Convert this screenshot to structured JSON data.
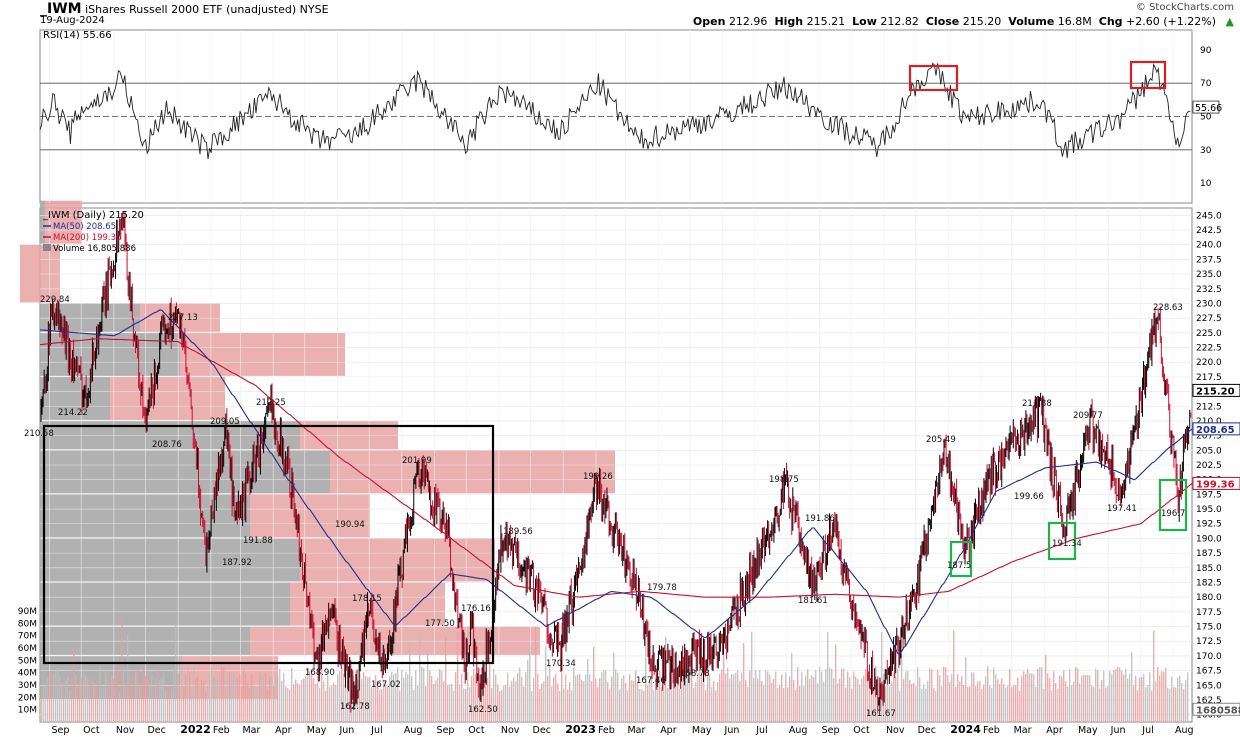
{
  "header": {
    "symbol": "_IWM",
    "description": "iShares Russell 2000 ETF (unadjusted)",
    "exchange": "NYSE",
    "date": "19-Aug-2024",
    "watermark": "© StockCharts.com",
    "open_label": "Open",
    "open_value": "212.96",
    "high_label": "High",
    "high_value": "215.21",
    "low_label": "Low",
    "low_value": "212.82",
    "close_label": "Close",
    "close_value": "215.20",
    "volume_label": "Volume",
    "volume_value": "16.8M",
    "chg_label": "Chg",
    "chg_value": "+2.60 (+1.22%)",
    "chg_arrow": "▲"
  },
  "rsi": {
    "legend": "RSI(14) 55.66",
    "ticks": [
      "90",
      "70",
      "50",
      "30",
      "10"
    ],
    "current_label": "55.66"
  },
  "price": {
    "legend_main": "_IWM (Daily) 215.20",
    "legend_ma50": "MA(50) 208.65",
    "legend_ma200": "MA(200) 199.36",
    "legend_volume": "Volume 16,805,886",
    "ticks": [
      "245.0",
      "242.5",
      "240.0",
      "237.5",
      "235.0",
      "232.5",
      "230.0",
      "227.5",
      "225.0",
      "222.5",
      "220.0",
      "217.5",
      "215.0",
      "212.5",
      "210.0",
      "207.5",
      "205.0",
      "202.5",
      "200.0",
      "197.5",
      "195.0",
      "192.5",
      "190.0",
      "187.5",
      "185.0",
      "182.5",
      "180.0",
      "177.5",
      "175.0",
      "172.5",
      "170.0",
      "167.5",
      "165.0",
      "162.5",
      "160.0"
    ],
    "volume_ticks": [
      "90M",
      "80M",
      "70M",
      "60M",
      "50M",
      "40M",
      "30M",
      "20M",
      "10M"
    ],
    "tag_close": "215.20",
    "tag_ma50": "208.65",
    "tag_ma200": "199.36",
    "tag_volume": "16805886"
  },
  "x_axis": [
    "Sep",
    "Oct",
    "Nov",
    "Dec",
    "2022",
    "Feb",
    "Mar",
    "Apr",
    "May",
    "Jun",
    "Jul",
    "Aug",
    "Sep",
    "Oct",
    "Nov",
    "Dec",
    "2023",
    "Feb",
    "Mar",
    "Apr",
    "May",
    "Jun",
    "Jul",
    "Aug",
    "Sep",
    "Oct",
    "Nov",
    "Dec",
    "2024",
    "Feb",
    "Mar",
    "Apr",
    "May",
    "Jun",
    "Jul",
    "Aug"
  ],
  "chart_data": {
    "type": "line",
    "title": "_IWM iShares Russell 2000 ETF (unadjusted) NYSE",
    "x_range": [
      "2021-08-23",
      "2024-08-19"
    ],
    "ylim": [
      160,
      245
    ],
    "rsi_ylim": [
      0,
      100
    ],
    "volume_ylim": [
      0,
      100
    ],
    "series": [
      {
        "name": "_IWM (Daily)",
        "x": [
          "2021-08-23",
          "2021-09-03",
          "2021-10-04",
          "2021-11-08",
          "2021-11-30",
          "2021-12-20",
          "2022-01-03",
          "2022-01-27",
          "2022-02-15",
          "2022-02-24",
          "2022-03-29",
          "2022-04-15",
          "2022-05-12",
          "2022-05-24",
          "2022-06-16",
          "2022-07-01",
          "2022-07-15",
          "2022-08-16",
          "2022-09-13",
          "2022-09-30",
          "2022-10-06",
          "2022-10-13",
          "2022-11-03",
          "2022-11-30",
          "2022-12-28",
          "2023-02-02",
          "2023-03-13",
          "2023-03-28",
          "2023-04-27",
          "2023-05-31",
          "2023-07-31",
          "2023-08-24",
          "2023-09-14",
          "2023-10-27",
          "2023-11-30",
          "2023-12-27",
          "2024-01-17",
          "2024-02-06",
          "2024-03-28",
          "2024-04-19",
          "2024-05-15",
          "2024-06-14",
          "2024-07-16",
          "2024-08-05",
          "2024-08-19"
        ],
        "values": [
          210.58,
          229.84,
          214.22,
          244.8,
          208.76,
          227.13,
          227.0,
          187.92,
          209.05,
          191.88,
          212.25,
          201.5,
          168.9,
          178.0,
          162.78,
          178.15,
          167.02,
          201.99,
          190.94,
          167.5,
          176.16,
          162.5,
          189.56,
          184.0,
          170.34,
          199.26,
          179.78,
          167.46,
          168.78,
          172.0,
          198.75,
          181.61,
          191.86,
          161.67,
          180.0,
          205.49,
          187.5,
          199.66,
          211.88,
          191.34,
          209.77,
          197.41,
          228.63,
          196.7,
          215.2
        ]
      },
      {
        "name": "MA(50)",
        "x": [
          "2021-08-23",
          "2021-11-01",
          "2021-12-15",
          "2022-02-01",
          "2022-04-15",
          "2022-06-01",
          "2022-07-25",
          "2022-09-15",
          "2022-10-20",
          "2022-12-15",
          "2023-02-15",
          "2023-03-25",
          "2023-05-15",
          "2023-07-01",
          "2023-08-25",
          "2023-10-15",
          "2023-11-15",
          "2024-01-05",
          "2024-02-15",
          "2024-04-01",
          "2024-05-20",
          "2024-06-25",
          "2024-07-25",
          "2024-08-19"
        ],
        "values": [
          225.5,
          224.5,
          229.0,
          220.0,
          200.0,
          188.0,
          175.0,
          184.0,
          183.0,
          175.0,
          181.0,
          180.0,
          173.0,
          180.0,
          192.0,
          181.0,
          170.0,
          185.0,
          198.0,
          202.0,
          203.0,
          200.0,
          205.0,
          208.65
        ]
      },
      {
        "name": "MA(200)",
        "x": [
          "2021-08-23",
          "2021-10-15",
          "2021-12-31",
          "2022-03-15",
          "2022-06-01",
          "2022-09-01",
          "2022-11-15",
          "2023-01-15",
          "2023-03-15",
          "2023-05-15",
          "2023-07-15",
          "2023-09-15",
          "2023-11-15",
          "2024-01-01",
          "2024-03-01",
          "2024-05-01",
          "2024-07-01",
          "2024-08-19"
        ],
        "values": [
          223.0,
          224.0,
          223.5,
          216.0,
          204.0,
          192.0,
          182.0,
          180.0,
          181.0,
          180.0,
          180.0,
          180.5,
          180.0,
          181.0,
          186.0,
          190.0,
          192.5,
          199.36
        ]
      }
    ],
    "rsi_series": {
      "name": "RSI(14)",
      "x": [
        "2021-08-23",
        "2021-09-03",
        "2021-09-20",
        "2021-10-01",
        "2021-10-25",
        "2021-11-08",
        "2021-11-30",
        "2021-12-20",
        "2022-01-27",
        "2022-03-29",
        "2022-05-12",
        "2022-06-16",
        "2022-08-16",
        "2022-09-30",
        "2022-11-03",
        "2022-12-28",
        "2023-02-02",
        "2023-03-13",
        "2023-04-27",
        "2023-06-01",
        "2023-07-31",
        "2023-09-14",
        "2023-10-27",
        "2023-12-01",
        "2023-12-20",
        "2024-01-17",
        "2024-03-28",
        "2024-04-19",
        "2024-06-14",
        "2024-07-16",
        "2024-08-05",
        "2024-08-19"
      ],
      "values": [
        43,
        60,
        40,
        55,
        62,
        75,
        30,
        55,
        30,
        63,
        35,
        38,
        72,
        33,
        66,
        40,
        70,
        35,
        44,
        50,
        68,
        45,
        32,
        70,
        78,
        48,
        60,
        30,
        50,
        79,
        34,
        55.66
      ]
    },
    "volume_series": {
      "name": "Volume",
      "note": "daily volume in millions, last value 16.8M"
    },
    "annotations": [
      "229.84",
      "214.22",
      "210.58",
      "208.76",
      "227.13",
      "209.05",
      "212.25",
      "191.88",
      "187.92",
      "201.99",
      "190.94",
      "178.15",
      "177.50",
      "176.16",
      "168.90",
      "167.02",
      "162.78",
      "162.50",
      "189.56",
      "170.34",
      "199.26",
      "179.78",
      "167.46",
      "168.78",
      "198.75",
      "191.86",
      "181.61",
      "161.67",
      "205.49",
      "187.5",
      "199.66",
      "211.88",
      "191.34",
      "209.77",
      "197.41",
      "228.63",
      "196.7"
    ],
    "xlabel": "",
    "ylabel": "",
    "grid": true,
    "legend": "top-left"
  }
}
